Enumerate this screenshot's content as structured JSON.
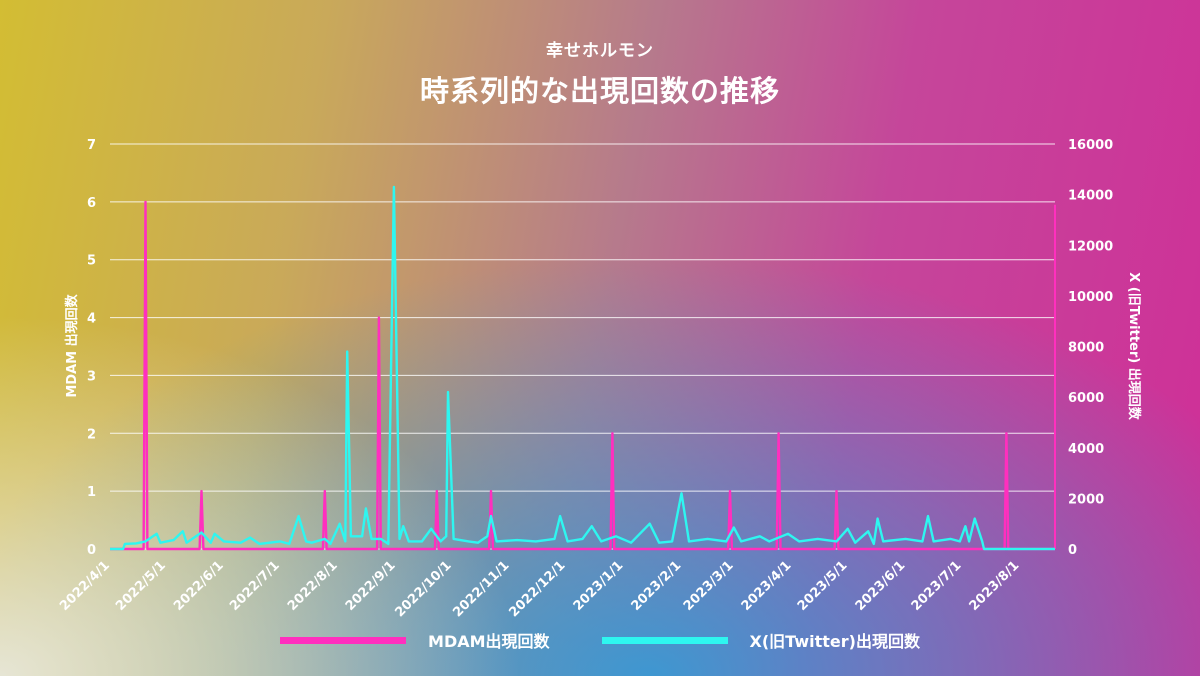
{
  "header": {
    "subtitle": "幸せホルモン",
    "title": "時系列的な出現回数の推移"
  },
  "colors": {
    "mdam": "#ff2fbe",
    "x": "#2ef6f0",
    "grid": "#ffffff",
    "text": "#ffffff"
  },
  "legend": {
    "mdam_label": "MDAM出現回数",
    "x_label": "X(旧Twitter)出現回数"
  },
  "chart_data": {
    "type": "line",
    "ylabel_left": "MDAM 出現回数",
    "ylabel_right": "X (旧Twitter) 出現回数",
    "ylim_left": [
      0,
      7
    ],
    "ylim_right": [
      0,
      16000
    ],
    "left_ticks": [
      "0",
      "1",
      "2",
      "3",
      "4",
      "5",
      "6",
      "7"
    ],
    "right_ticks": [
      "0",
      "2000",
      "4000",
      "6000",
      "8000",
      "10000",
      "12000",
      "14000",
      "16000"
    ],
    "x_ticks": [
      "2022/4/1",
      "2022/5/1",
      "2022/6/1",
      "2022/7/1",
      "2022/8/1",
      "2022/9/1",
      "2022/10/1",
      "2022/11/1",
      "2022/12/1",
      "2023/1/1",
      "2023/2/1",
      "2023/3/1",
      "2023/4/1",
      "2023/5/1",
      "2023/6/1",
      "2023/7/1",
      "2023/8/1"
    ],
    "grid": true,
    "legend_position": "bottom",
    "series": [
      {
        "name": "MDAM出現回数",
        "axis": "left",
        "peaks": [
          {
            "date": "2022-04-20",
            "value": 6
          },
          {
            "date": "2022-05-20",
            "value": 1
          },
          {
            "date": "2022-07-25",
            "value": 1
          },
          {
            "date": "2022-08-23",
            "value": 4
          },
          {
            "date": "2022-09-23",
            "value": 1
          },
          {
            "date": "2022-10-22",
            "value": 1
          },
          {
            "date": "2022-12-26",
            "value": 2
          },
          {
            "date": "2023-02-27",
            "value": 1
          },
          {
            "date": "2023-03-25",
            "value": 2
          },
          {
            "date": "2023-04-25",
            "value": 1
          },
          {
            "date": "2023-07-25",
            "value": 2
          }
        ]
      },
      {
        "name": "X(旧Twitter)出現回数",
        "axis": "right",
        "points": [
          [
            "2022-04-01",
            0
          ],
          [
            "2022-04-08",
            0
          ],
          [
            "2022-04-09",
            200
          ],
          [
            "2022-04-15",
            220
          ],
          [
            "2022-04-20",
            300
          ],
          [
            "2022-04-26",
            600
          ],
          [
            "2022-04-28",
            250
          ],
          [
            "2022-05-05",
            350
          ],
          [
            "2022-05-10",
            700
          ],
          [
            "2022-05-12",
            250
          ],
          [
            "2022-05-20",
            650
          ],
          [
            "2022-05-25",
            250
          ],
          [
            "2022-05-27",
            600
          ],
          [
            "2022-06-01",
            300
          ],
          [
            "2022-06-10",
            250
          ],
          [
            "2022-06-15",
            450
          ],
          [
            "2022-06-20",
            200
          ],
          [
            "2022-07-01",
            300
          ],
          [
            "2022-07-06",
            200
          ],
          [
            "2022-07-11",
            1300
          ],
          [
            "2022-07-15",
            300
          ],
          [
            "2022-07-18",
            250
          ],
          [
            "2022-07-25",
            400
          ],
          [
            "2022-07-28",
            200
          ],
          [
            "2022-08-02",
            1000
          ],
          [
            "2022-08-05",
            300
          ],
          [
            "2022-08-06",
            7800
          ],
          [
            "2022-08-08",
            500
          ],
          [
            "2022-08-14",
            500
          ],
          [
            "2022-08-16",
            1600
          ],
          [
            "2022-08-19",
            400
          ],
          [
            "2022-08-24",
            400
          ],
          [
            "2022-08-28",
            200
          ],
          [
            "2022-08-31",
            14300
          ],
          [
            "2022-09-03",
            400
          ],
          [
            "2022-09-05",
            900
          ],
          [
            "2022-09-08",
            300
          ],
          [
            "2022-09-15",
            300
          ],
          [
            "2022-09-20",
            800
          ],
          [
            "2022-09-25",
            300
          ],
          [
            "2022-09-28",
            500
          ],
          [
            "2022-09-29",
            6200
          ],
          [
            "2022-10-02",
            400
          ],
          [
            "2022-10-10",
            300
          ],
          [
            "2022-10-15",
            250
          ],
          [
            "2022-10-20",
            500
          ],
          [
            "2022-10-22",
            1300
          ],
          [
            "2022-10-25",
            300
          ],
          [
            "2022-11-05",
            350
          ],
          [
            "2022-11-15",
            300
          ],
          [
            "2022-11-25",
            400
          ],
          [
            "2022-11-28",
            1300
          ],
          [
            "2022-12-02",
            300
          ],
          [
            "2022-12-10",
            400
          ],
          [
            "2022-12-15",
            900
          ],
          [
            "2022-12-20",
            300
          ],
          [
            "2022-12-28",
            500
          ],
          [
            "2023-01-05",
            250
          ],
          [
            "2023-01-15",
            1000
          ],
          [
            "2023-01-20",
            250
          ],
          [
            "2023-01-27",
            300
          ],
          [
            "2023-02-01",
            2200
          ],
          [
            "2023-02-05",
            300
          ],
          [
            "2023-02-15",
            400
          ],
          [
            "2023-02-25",
            300
          ],
          [
            "2023-03-01",
            850
          ],
          [
            "2023-03-05",
            300
          ],
          [
            "2023-03-15",
            500
          ],
          [
            "2023-03-20",
            300
          ],
          [
            "2023-03-30",
            600
          ],
          [
            "2023-04-05",
            300
          ],
          [
            "2023-04-15",
            400
          ],
          [
            "2023-04-25",
            300
          ],
          [
            "2023-05-01",
            800
          ],
          [
            "2023-05-05",
            250
          ],
          [
            "2023-05-12",
            700
          ],
          [
            "2023-05-15",
            200
          ],
          [
            "2023-05-17",
            1200
          ],
          [
            "2023-05-20",
            300
          ],
          [
            "2023-06-01",
            400
          ],
          [
            "2023-06-10",
            300
          ],
          [
            "2023-06-13",
            1300
          ],
          [
            "2023-06-16",
            300
          ],
          [
            "2023-06-25",
            400
          ],
          [
            "2023-06-30",
            300
          ],
          [
            "2023-07-03",
            900
          ],
          [
            "2023-07-05",
            300
          ],
          [
            "2023-07-08",
            1200
          ],
          [
            "2023-07-12",
            300
          ],
          [
            "2023-07-13",
            0
          ],
          [
            "2023-08-20",
            0
          ]
        ]
      }
    ]
  }
}
